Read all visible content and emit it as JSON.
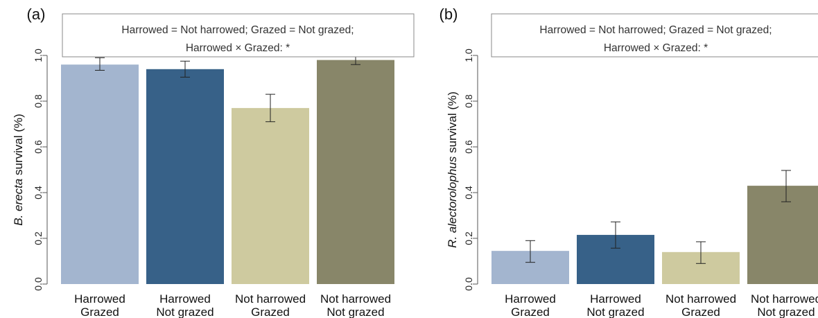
{
  "chart_data": [
    {
      "type": "bar",
      "panel": "(a)",
      "ylabel_species": "B. erecta",
      "ylabel_rest": " survival (%)",
      "ylim": [
        0,
        1
      ],
      "yticks": [
        "0.0",
        "0.2",
        "0.4",
        "0.6",
        "0.8",
        "1.0"
      ],
      "categories": [
        {
          "line1": "Harrowed",
          "line2": "Grazed"
        },
        {
          "line1": "Harrowed",
          "line2": "Not grazed"
        },
        {
          "line1": "Not harrowed",
          "line2": "Grazed"
        },
        {
          "line1": "Not harrowed",
          "line2": "Not grazed"
        }
      ],
      "values": [
        0.96,
        0.94,
        0.77,
        0.98
      ],
      "err_low": [
        0.935,
        0.905,
        0.71,
        0.96
      ],
      "err_high": [
        0.99,
        0.975,
        0.83,
        0.997
      ],
      "legend_lines": [
        "Harrowed = Not harrowed; Grazed = Not grazed;",
        "Harrowed × Grazed: *"
      ],
      "colors": [
        "#a3b5cf",
        "#376188",
        "#ceca9f",
        "#888669"
      ]
    },
    {
      "type": "bar",
      "panel": "(b)",
      "ylabel_species": "R. alectorolophus",
      "ylabel_rest": " survival (%)",
      "ylim": [
        0,
        1
      ],
      "yticks": [
        "0.0",
        "0.2",
        "0.4",
        "0.6",
        "0.8",
        "1.0"
      ],
      "categories": [
        {
          "line1": "Harrowed",
          "line2": "Grazed"
        },
        {
          "line1": "Harrowed",
          "line2": "Not grazed"
        },
        {
          "line1": "Not harrowed",
          "line2": "Grazed"
        },
        {
          "line1": "Not harrowed",
          "line2": "Not grazed"
        }
      ],
      "values": [
        0.145,
        0.215,
        0.14,
        0.43
      ],
      "err_low": [
        0.095,
        0.157,
        0.09,
        0.36
      ],
      "err_high": [
        0.19,
        0.272,
        0.185,
        0.497
      ],
      "legend_lines": [
        "Harrowed = Not harrowed; Grazed = Not grazed;",
        "Harrowed × Grazed: *"
      ],
      "colors": [
        "#a3b5cf",
        "#376188",
        "#ceca9f",
        "#888669"
      ]
    }
  ]
}
